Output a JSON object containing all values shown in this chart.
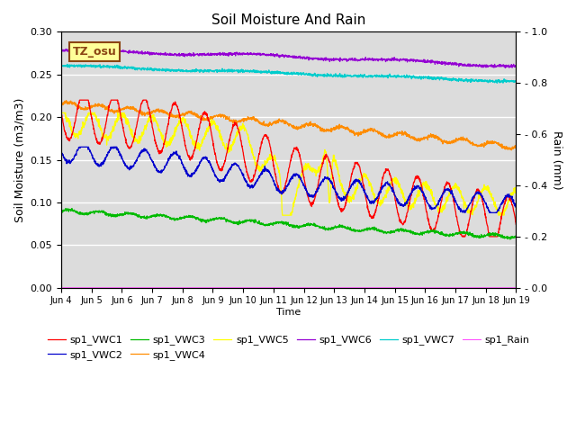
{
  "title": "Soil Moisture And Rain",
  "xlabel": "Time",
  "ylabel_left": "Soil Moisture (m3/m3)",
  "ylabel_right": "Rain (mm)",
  "ylim_left": [
    0.0,
    0.3
  ],
  "ylim_right": [
    0.0,
    1.0
  ],
  "xlim": [
    0,
    15
  ],
  "x_tick_labels": [
    "Jun 4",
    "Jun 5",
    "Jun 6",
    "Jun 7",
    "Jun 8",
    "Jun 9",
    "Jun 10",
    "Jun 11",
    "Jun 12",
    "Jun 13",
    "Jun 14",
    "Jun 15",
    "Jun 16",
    "Jun 17",
    "Jun 18",
    "Jun 19"
  ],
  "annotation_text": "TZ_osu",
  "annotation_color": "#8B4513",
  "annotation_bg": "#FFFF99",
  "colors": {
    "VWC1": "#ff0000",
    "VWC2": "#0000cd",
    "VWC3": "#00bb00",
    "VWC4": "#ff8c00",
    "VWC5": "#ffff00",
    "VWC6": "#9400d3",
    "VWC7": "#00cccc",
    "Rain": "#ff44ff"
  },
  "legend_labels": [
    "sp1_VWC1",
    "sp1_VWC2",
    "sp1_VWC3",
    "sp1_VWC4",
    "sp1_VWC5",
    "sp1_VWC6",
    "sp1_VWC7",
    "sp1_Rain"
  ],
  "bg_color": "#dcdcdc",
  "right_ytick_labels": [
    "- 0.0",
    "- 0.2",
    "- 0.4",
    "- 0.6",
    "- 0.8",
    "- 1.0"
  ]
}
